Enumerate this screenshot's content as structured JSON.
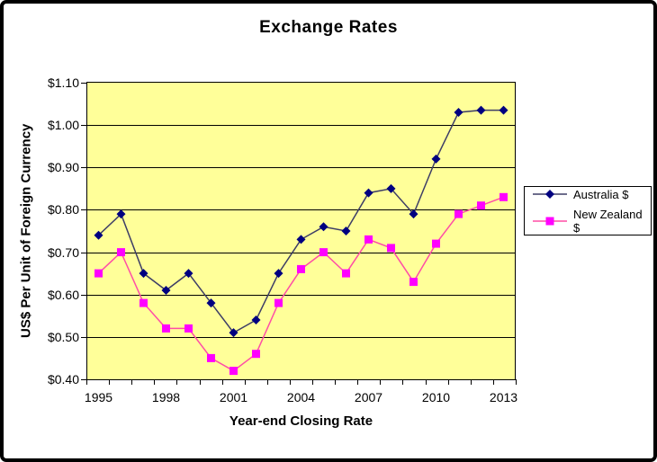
{
  "chart_data": {
    "type": "line",
    "title": "Exchange Rates",
    "xlabel": "Year-end Closing Rate",
    "ylabel": "US$ Per Unit of Foreign Currency",
    "x": [
      1995,
      1996,
      1997,
      1998,
      1999,
      2000,
      2001,
      2002,
      2003,
      2004,
      2005,
      2006,
      2007,
      2008,
      2009,
      2010,
      2011,
      2012,
      2013
    ],
    "x_label_interval": 3,
    "visible_x_labels": [
      "1995",
      "1998",
      "2001",
      "2004",
      "2007",
      "2010",
      "2013"
    ],
    "ylim": [
      0.4,
      1.1
    ],
    "y_tick_step": 0.1,
    "y_tick_labels": [
      "$1.10",
      "$1.00",
      "$0.90",
      "$0.80",
      "$0.70",
      "$0.60",
      "$0.50",
      "$0.40"
    ],
    "grid": "horizontal-major",
    "legend_position": "right",
    "plot_background": "#ffff99",
    "gridline_color": "#000000",
    "series": [
      {
        "name": "Australia $",
        "marker": "diamond",
        "marker_color": "#000080",
        "line_color": "#3d3d66",
        "values": [
          0.74,
          0.79,
          0.65,
          0.61,
          0.65,
          0.58,
          0.51,
          0.54,
          0.65,
          0.73,
          0.76,
          0.75,
          0.84,
          0.85,
          0.79,
          0.92,
          1.03,
          1.035,
          1.035
        ]
      },
      {
        "name": "New Zealand $",
        "marker": "square",
        "marker_color": "#ff00ff",
        "line_color": "#ff4da6",
        "values": [
          0.65,
          0.7,
          0.58,
          0.52,
          0.52,
          0.45,
          0.42,
          0.46,
          0.58,
          0.66,
          0.7,
          0.65,
          0.73,
          0.71,
          0.63,
          0.72,
          0.79,
          0.81,
          0.83
        ]
      }
    ]
  }
}
